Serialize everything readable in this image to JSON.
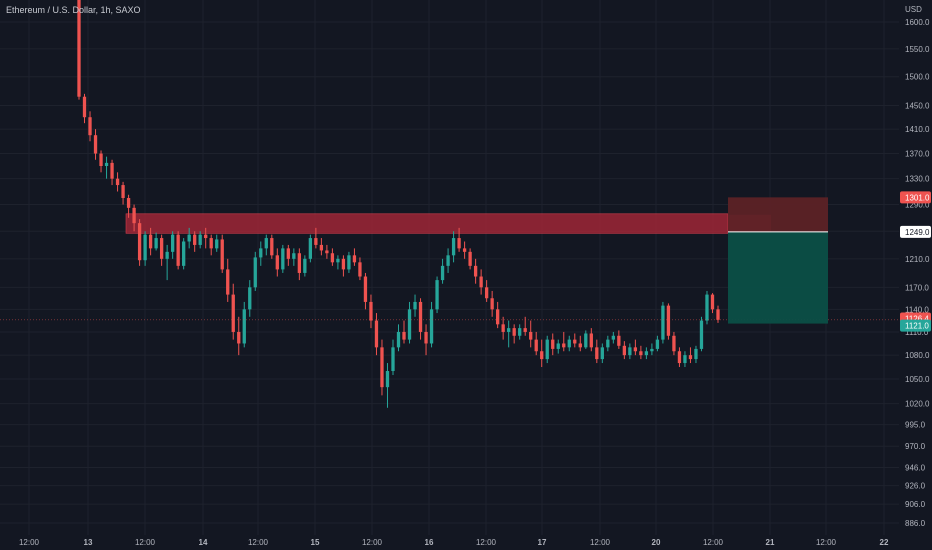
{
  "header": {
    "title": "Ethereum / U.S. Dollar, 1h, SAXO",
    "axis_unit": "USD"
  },
  "colors": {
    "background": "#131722",
    "grid": "#1e222d",
    "up": "#26a69a",
    "down": "#ef5350",
    "zone": "#b2283a",
    "stop_box": "#5c2226",
    "target_box": "#0b4f47",
    "axis_text": "#b2b5be"
  },
  "chart_data": {
    "type": "candlestick",
    "title": "Ethereum / U.S. Dollar, 1h, SAXO",
    "y_axis": {
      "unit": "USD",
      "scale": "log",
      "ticks": [
        "1600.0",
        "1550.0",
        "1500.0",
        "1450.0",
        "1410.0",
        "1370.0",
        "1330.0",
        "1290.0",
        "1250.0",
        "1210.0",
        "1170.0",
        "1140.0",
        "1110.0",
        "1080.0",
        "1050.0",
        "1020.0",
        "995.0",
        "970.0",
        "946.0",
        "926.0",
        "906.0",
        "886.0"
      ]
    },
    "x_axis": {
      "ticks": [
        "12:00",
        "13",
        "12:00",
        "14",
        "12:00",
        "15",
        "12:00",
        "16",
        "12:00",
        "17",
        "12:00",
        "20",
        "12:00",
        "21",
        "12:00",
        "22"
      ]
    },
    "price_labels": [
      {
        "value": "1301.0",
        "color": "#ef5350",
        "text_color": "#ffffff",
        "role": "stop"
      },
      {
        "value": "1249.0",
        "color": "#ffffff",
        "text_color": "#131722",
        "role": "entry"
      },
      {
        "value": "1126.4",
        "color": "#ef5350",
        "text_color": "#ffffff",
        "role": "last"
      },
      {
        "value": "1121.0",
        "color": "#26a69a",
        "text_color": "#ffffff",
        "role": "target"
      }
    ],
    "supply_zone": {
      "low": 1247,
      "high": 1276
    },
    "short_position": {
      "entry": 1249,
      "stop": 1301,
      "target": 1121
    },
    "ohlc": [
      [
        1700,
        1700,
        1460,
        1465
      ],
      [
        1465,
        1470,
        1420,
        1430
      ],
      [
        1430,
        1440,
        1390,
        1400
      ],
      [
        1400,
        1410,
        1360,
        1370
      ],
      [
        1370,
        1375,
        1340,
        1350
      ],
      [
        1350,
        1365,
        1330,
        1355
      ],
      [
        1355,
        1360,
        1320,
        1330
      ],
      [
        1330,
        1340,
        1310,
        1320
      ],
      [
        1320,
        1325,
        1290,
        1300
      ],
      [
        1300,
        1305,
        1270,
        1285
      ],
      [
        1285,
        1290,
        1250,
        1262
      ],
      [
        1262,
        1268,
        1200,
        1208
      ],
      [
        1208,
        1250,
        1200,
        1245
      ],
      [
        1245,
        1255,
        1215,
        1225
      ],
      [
        1225,
        1248,
        1222,
        1240
      ],
      [
        1240,
        1245,
        1200,
        1210
      ],
      [
        1210,
        1230,
        1180,
        1220
      ],
      [
        1220,
        1250,
        1210,
        1245
      ],
      [
        1245,
        1250,
        1195,
        1200
      ],
      [
        1200,
        1240,
        1195,
        1235
      ],
      [
        1235,
        1255,
        1225,
        1245
      ],
      [
        1245,
        1250,
        1220,
        1230
      ],
      [
        1230,
        1250,
        1225,
        1245
      ],
      [
        1245,
        1255,
        1225,
        1240
      ],
      [
        1240,
        1245,
        1215,
        1225
      ],
      [
        1225,
        1245,
        1220,
        1238
      ],
      [
        1238,
        1245,
        1190,
        1195
      ],
      [
        1195,
        1210,
        1150,
        1160
      ],
      [
        1160,
        1175,
        1100,
        1110
      ],
      [
        1110,
        1130,
        1080,
        1095
      ],
      [
        1095,
        1150,
        1090,
        1140
      ],
      [
        1140,
        1180,
        1130,
        1170
      ],
      [
        1170,
        1220,
        1165,
        1212
      ],
      [
        1212,
        1235,
        1200,
        1225
      ],
      [
        1225,
        1245,
        1215,
        1240
      ],
      [
        1240,
        1245,
        1210,
        1215
      ],
      [
        1215,
        1225,
        1185,
        1195
      ],
      [
        1195,
        1230,
        1190,
        1225
      ],
      [
        1225,
        1230,
        1200,
        1210
      ],
      [
        1210,
        1225,
        1200,
        1218
      ],
      [
        1218,
        1225,
        1180,
        1190
      ],
      [
        1190,
        1215,
        1185,
        1210
      ],
      [
        1210,
        1245,
        1205,
        1240
      ],
      [
        1240,
        1255,
        1225,
        1230
      ],
      [
        1230,
        1240,
        1215,
        1222
      ],
      [
        1222,
        1230,
        1210,
        1218
      ],
      [
        1218,
        1225,
        1200,
        1205
      ],
      [
        1205,
        1215,
        1195,
        1210
      ],
      [
        1210,
        1215,
        1185,
        1195
      ],
      [
        1195,
        1220,
        1190,
        1215
      ],
      [
        1215,
        1225,
        1200,
        1205
      ],
      [
        1205,
        1212,
        1180,
        1185
      ],
      [
        1185,
        1190,
        1140,
        1150
      ],
      [
        1150,
        1160,
        1115,
        1125
      ],
      [
        1125,
        1135,
        1080,
        1090
      ],
      [
        1090,
        1100,
        1030,
        1040
      ],
      [
        1040,
        1070,
        1015,
        1060
      ],
      [
        1060,
        1100,
        1055,
        1090
      ],
      [
        1090,
        1120,
        1085,
        1110
      ],
      [
        1110,
        1125,
        1095,
        1100
      ],
      [
        1100,
        1150,
        1095,
        1140
      ],
      [
        1140,
        1160,
        1130,
        1150
      ],
      [
        1150,
        1155,
        1100,
        1110
      ],
      [
        1110,
        1120,
        1080,
        1095
      ],
      [
        1095,
        1150,
        1090,
        1140
      ],
      [
        1140,
        1185,
        1135,
        1180
      ],
      [
        1180,
        1210,
        1175,
        1200
      ],
      [
        1200,
        1225,
        1190,
        1215
      ],
      [
        1215,
        1250,
        1205,
        1240
      ],
      [
        1240,
        1255,
        1220,
        1225
      ],
      [
        1225,
        1235,
        1210,
        1220
      ],
      [
        1220,
        1225,
        1195,
        1200
      ],
      [
        1200,
        1210,
        1175,
        1185
      ],
      [
        1185,
        1195,
        1160,
        1170
      ],
      [
        1170,
        1180,
        1150,
        1155
      ],
      [
        1155,
        1165,
        1130,
        1140
      ],
      [
        1140,
        1150,
        1115,
        1120
      ],
      [
        1120,
        1130,
        1100,
        1110
      ],
      [
        1110,
        1125,
        1090,
        1115
      ],
      [
        1115,
        1120,
        1095,
        1105
      ],
      [
        1105,
        1120,
        1100,
        1115
      ],
      [
        1115,
        1130,
        1105,
        1110
      ],
      [
        1110,
        1125,
        1090,
        1100
      ],
      [
        1100,
        1110,
        1080,
        1085
      ],
      [
        1085,
        1100,
        1065,
        1075
      ],
      [
        1075,
        1105,
        1070,
        1100
      ],
      [
        1100,
        1108,
        1080,
        1088
      ],
      [
        1088,
        1100,
        1082,
        1095
      ],
      [
        1095,
        1110,
        1085,
        1090
      ],
      [
        1090,
        1105,
        1085,
        1100
      ],
      [
        1100,
        1108,
        1090,
        1095
      ],
      [
        1095,
        1105,
        1085,
        1090
      ],
      [
        1090,
        1112,
        1088,
        1108
      ],
      [
        1108,
        1115,
        1085,
        1090
      ],
      [
        1090,
        1100,
        1070,
        1075
      ],
      [
        1075,
        1095,
        1070,
        1090
      ],
      [
        1090,
        1105,
        1085,
        1100
      ],
      [
        1100,
        1110,
        1095,
        1105
      ],
      [
        1105,
        1112,
        1088,
        1092
      ],
      [
        1092,
        1098,
        1075,
        1080
      ],
      [
        1080,
        1095,
        1075,
        1090
      ],
      [
        1090,
        1100,
        1080,
        1085
      ],
      [
        1085,
        1092,
        1075,
        1080
      ],
      [
        1080,
        1090,
        1075,
        1085
      ],
      [
        1085,
        1095,
        1080,
        1088
      ],
      [
        1088,
        1105,
        1085,
        1100
      ],
      [
        1100,
        1150,
        1095,
        1145
      ],
      [
        1145,
        1148,
        1100,
        1105
      ],
      [
        1105,
        1110,
        1080,
        1085
      ],
      [
        1085,
        1090,
        1065,
        1070
      ],
      [
        1070,
        1085,
        1065,
        1080
      ],
      [
        1080,
        1090,
        1070,
        1075
      ],
      [
        1075,
        1092,
        1070,
        1088
      ],
      [
        1088,
        1130,
        1085,
        1125
      ],
      [
        1125,
        1165,
        1120,
        1160
      ],
      [
        1160,
        1162,
        1135,
        1140
      ],
      [
        1140,
        1145,
        1122,
        1126
      ]
    ]
  }
}
